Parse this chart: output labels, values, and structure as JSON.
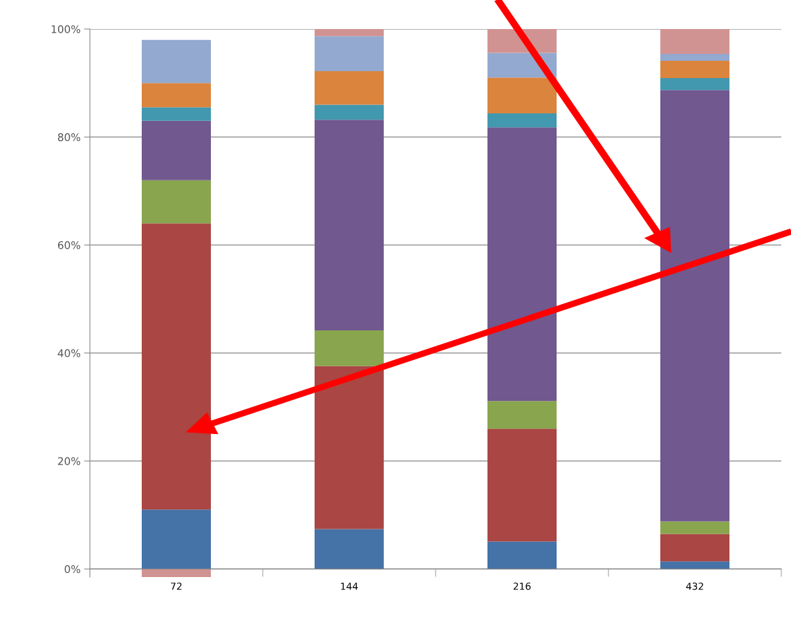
{
  "chart_data": {
    "type": "bar",
    "stacked": true,
    "categories": [
      "72",
      "144",
      "216",
      "432"
    ],
    "series": [
      {
        "color": "#4572a7",
        "values": [
          11,
          7.4,
          5.1,
          1.4
        ]
      },
      {
        "color": "#aa4643",
        "values": [
          53,
          30.2,
          20.9,
          5.1
        ]
      },
      {
        "color": "#89a54e",
        "values": [
          8,
          6.6,
          5.1,
          2.3
        ]
      },
      {
        "color": "#71588f",
        "values": [
          11,
          39,
          50.7,
          79.9
        ]
      },
      {
        "color": "#4198af",
        "values": [
          2.5,
          2.8,
          2.6,
          2.2
        ]
      },
      {
        "color": "#db843d",
        "values": [
          4.5,
          6.2,
          6.6,
          3.2
        ]
      },
      {
        "color": "#93a9cf",
        "values": [
          8,
          6.5,
          4.6,
          1.3
        ]
      },
      {
        "color": "#d19392",
        "values": [
          -1.5,
          1.3,
          4.4,
          4.6
        ]
      }
    ],
    "ylim": [
      -1.5,
      100
    ],
    "yticks": [
      {
        "value": 0,
        "label": "0%"
      },
      {
        "value": 20,
        "label": "20%"
      },
      {
        "value": 40,
        "label": "40%"
      },
      {
        "value": 60,
        "label": "60%"
      },
      {
        "value": 80,
        "label": "80%"
      },
      {
        "value": 100,
        "label": "100%"
      }
    ],
    "grid": "y"
  }
}
